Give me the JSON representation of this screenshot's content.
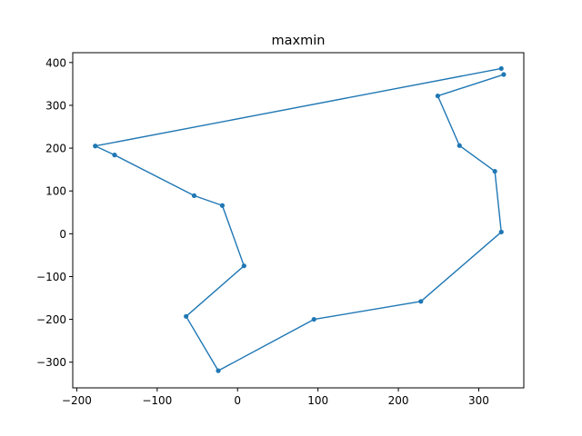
{
  "chart_data": {
    "type": "line",
    "title": "maxmin",
    "xlabel": "",
    "ylabel": "",
    "xlim": [
      -205,
      356
    ],
    "ylim": [
      -360,
      423
    ],
    "xticks": [
      -200,
      -100,
      0,
      100,
      200,
      300
    ],
    "yticks": [
      -300,
      -200,
      -100,
      0,
      100,
      200,
      300,
      400
    ],
    "xtick_labels": [
      "−200",
      "−100",
      "0",
      "100",
      "200",
      "300"
    ],
    "ytick_labels": [
      "−300",
      "−200",
      "−100",
      "0",
      "100",
      "200",
      "300",
      "400"
    ],
    "grid": false,
    "series": [
      {
        "color": "#1f77b4",
        "marker": "dot",
        "points": [
          [
            328,
            386
          ],
          [
            -177,
            205
          ],
          [
            -153,
            184
          ],
          [
            -54,
            89
          ],
          [
            -19,
            66
          ],
          [
            8,
            -75
          ],
          [
            -64,
            -193
          ],
          [
            -24,
            -320
          ],
          [
            95,
            -200
          ],
          [
            228,
            -158
          ],
          [
            328,
            4
          ],
          [
            320,
            146
          ],
          [
            276,
            206
          ],
          [
            249,
            322
          ],
          [
            331,
            372
          ]
        ]
      }
    ]
  }
}
